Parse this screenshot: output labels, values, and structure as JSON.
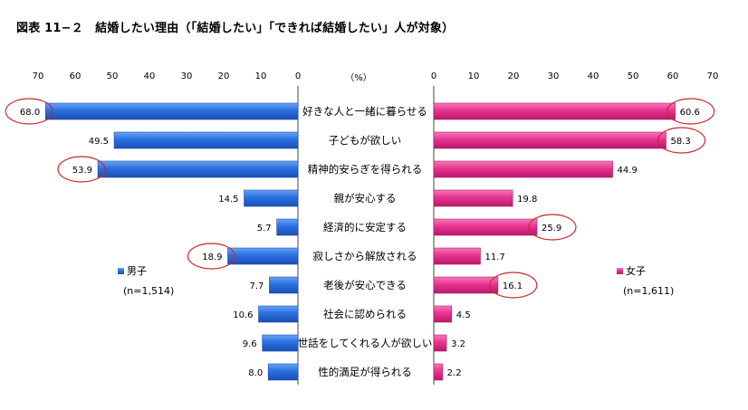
{
  "title": "図表 11−２　結婚したい理由（「結婚したい」「できれば結婚したい」人が対象）",
  "unit_label": "（%）",
  "colors": {
    "male": "#2a6fe0",
    "female": "#e8338f",
    "circle": "#c8282d"
  },
  "chart_data": [
    {
      "type": "bar",
      "orientation": "horizontal",
      "direction": "leftward",
      "categories": [
        "好きな人と一緒に暮らせる",
        "子どもが欲しい",
        "精神的安らぎを得られる",
        "親が安心する",
        "経済的に安定する",
        "寂しさから解放される",
        "老後が安心できる",
        "社会に認められる",
        "世話をしてくれる人が欲しい",
        "性的満足が得られる"
      ],
      "series": [
        {
          "name": "男子",
          "values": [
            68.0,
            49.5,
            53.9,
            14.5,
            5.7,
            18.9,
            7.7,
            10.6,
            9.6,
            8.0
          ]
        }
      ],
      "value_labels": [
        "68.0",
        "49.5",
        "53.9",
        "14.5",
        "5.7",
        "18.9",
        "7.7",
        "10.6",
        "9.6",
        "8.0"
      ],
      "circled": [
        true,
        false,
        true,
        false,
        false,
        true,
        false,
        false,
        false,
        false
      ],
      "xlim": [
        0,
        70
      ],
      "ticks": [
        "0",
        "10",
        "20",
        "30",
        "40",
        "50",
        "60",
        "70"
      ],
      "legend": {
        "label": "男子",
        "note": "(n=1,514)"
      }
    },
    {
      "type": "bar",
      "orientation": "horizontal",
      "direction": "rightward",
      "categories": [
        "好きな人と一緒に暮らせる",
        "子どもが欲しい",
        "精神的安らぎを得られる",
        "親が安心する",
        "経済的に安定する",
        "寂しさから解放される",
        "老後が安心できる",
        "社会に認められる",
        "世話をしてくれる人が欲しい",
        "性的満足が得られる"
      ],
      "series": [
        {
          "name": "女子",
          "values": [
            60.6,
            58.3,
            44.9,
            19.8,
            25.9,
            11.7,
            16.1,
            4.5,
            3.2,
            2.2
          ]
        }
      ],
      "value_labels": [
        "60.6",
        "58.3",
        "44.9",
        "19.8",
        "25.9",
        "11.7",
        "16.1",
        "4.5",
        "3.2",
        "2.2"
      ],
      "circled": [
        true,
        true,
        false,
        false,
        true,
        false,
        true,
        false,
        false,
        false
      ],
      "xlim": [
        0,
        70
      ],
      "ticks": [
        "0",
        "10",
        "20",
        "30",
        "40",
        "50",
        "60",
        "70"
      ],
      "legend": {
        "label": "女子",
        "note": "(n=1,611)"
      }
    }
  ]
}
